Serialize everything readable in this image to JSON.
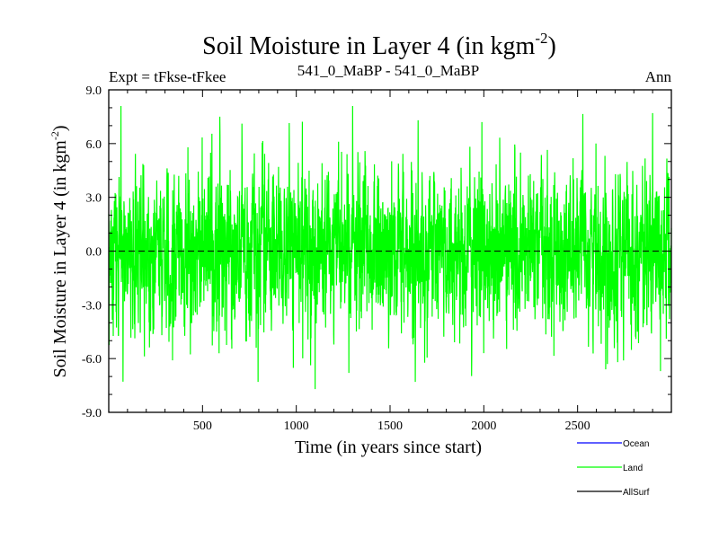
{
  "chart_data": {
    "type": "line",
    "title_main": "Soil Moisture in Layer 4 (in kgm",
    "title_sup": "-2",
    "title_close": ")",
    "subtitle_left": "Expt = tFkse-tFkee",
    "subtitle_center": "541_0_MaBP - 541_0_MaBP",
    "subtitle_right": "Ann",
    "xlabel": "Time (in years since start)",
    "ylabel_main": "Soil Moisture in Layer 4 (in kgm",
    "ylabel_sup": "-2",
    "ylabel_close": ")",
    "xlim": [
      0,
      3000
    ],
    "ylim": [
      -9.0,
      9.0
    ],
    "x_ticks": [
      500,
      1000,
      1500,
      2000,
      2500
    ],
    "x_tick_labels": [
      "500",
      "1000",
      "1500",
      "2000",
      "2500"
    ],
    "y_ticks": [
      9.0,
      6.0,
      3.0,
      0.0,
      -3.0,
      -6.0,
      -9.0
    ],
    "y_tick_labels": [
      "9.0",
      "6.0",
      "3.0",
      "0.0",
      "-3.0",
      "-6.0",
      "-9.0"
    ],
    "zero_line": true,
    "legend_position": "bottom-right",
    "series": [
      {
        "name": "Ocean",
        "color": "#0000ff",
        "values": []
      },
      {
        "name": "Land",
        "color": "#00ff00",
        "x_start": 0,
        "x_end": 3000,
        "n_points": 3000,
        "mean": 0.0,
        "stdev": 2.2,
        "min": -7.7,
        "max": 8.1,
        "extremes": [
          {
            "x": 65,
            "y": 8.1
          },
          {
            "x": 1100,
            "y": -7.7
          },
          {
            "x": 1300,
            "y": 8.1
          },
          {
            "x": 1280,
            "y": -6.8
          },
          {
            "x": 340,
            "y": -6.1
          },
          {
            "x": 2650,
            "y": -6.6
          },
          {
            "x": 1650,
            "y": 7.3
          },
          {
            "x": 1990,
            "y": 7.2
          }
        ]
      },
      {
        "name": "AllSurf",
        "color": "#000000",
        "values": []
      }
    ]
  }
}
